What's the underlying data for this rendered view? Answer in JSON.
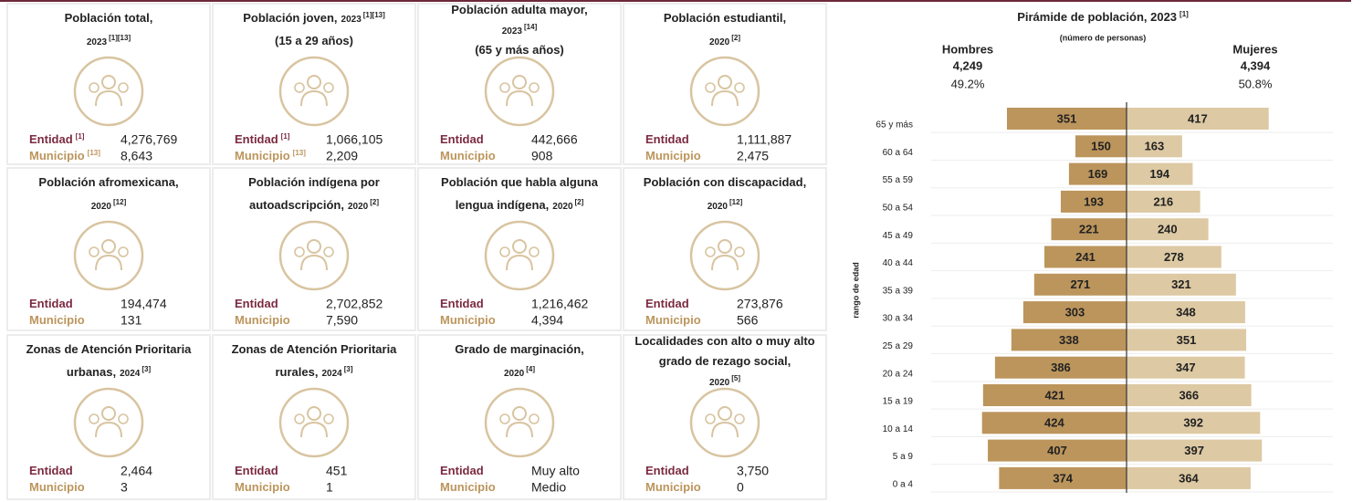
{
  "labels": {
    "entidad": "Entidad",
    "municipio": "Municipio"
  },
  "cards": [
    {
      "title_lines": [
        [
          {
            "text": "Población total,",
            "kind": "main"
          }
        ],
        [
          {
            "text": "2023",
            "kind": "year"
          },
          {
            "text": "[1][13]",
            "kind": "ref"
          }
        ]
      ],
      "entidad_ref": "[1]",
      "entidad_value": "4,276,769",
      "municipio_ref": "[13]",
      "municipio_value": "8,643"
    },
    {
      "title_lines": [
        [
          {
            "text": "Población joven,",
            "kind": "main"
          },
          {
            "text": "2023",
            "kind": "year"
          },
          {
            "text": "[1][13]",
            "kind": "ref"
          }
        ],
        [
          {
            "text": "(15 a 29 años)",
            "kind": "main"
          }
        ]
      ],
      "entidad_ref": "[1]",
      "entidad_value": "1,066,105",
      "municipio_ref": "[13]",
      "municipio_value": "2,209"
    },
    {
      "title_lines": [
        [
          {
            "text": "Población adulta mayor,",
            "kind": "main"
          }
        ],
        [
          {
            "text": "2023",
            "kind": "year"
          },
          {
            "text": "[14]",
            "kind": "ref"
          }
        ],
        [
          {
            "text": "(65 y más años)",
            "kind": "main"
          }
        ]
      ],
      "entidad_value": "442,666",
      "municipio_value": "908"
    },
    {
      "title_lines": [
        [
          {
            "text": "Población estudiantil,",
            "kind": "main"
          }
        ],
        [
          {
            "text": "2020",
            "kind": "year"
          },
          {
            "text": "[2]",
            "kind": "ref"
          }
        ]
      ],
      "entidad_value": "1,111,887",
      "municipio_value": "2,475"
    },
    {
      "title_lines": [
        [
          {
            "text": "Población afromexicana,",
            "kind": "main"
          }
        ],
        [
          {
            "text": "2020",
            "kind": "year"
          },
          {
            "text": "[12]",
            "kind": "ref"
          }
        ]
      ],
      "entidad_value": "194,474",
      "municipio_value": "131"
    },
    {
      "title_lines": [
        [
          {
            "text": "Población indígena por",
            "kind": "main"
          }
        ],
        [
          {
            "text": "autoadscripción,",
            "kind": "main"
          },
          {
            "text": "2020",
            "kind": "year"
          },
          {
            "text": "[2]",
            "kind": "ref"
          }
        ]
      ],
      "entidad_value": "2,702,852",
      "municipio_value": "7,590"
    },
    {
      "title_lines": [
        [
          {
            "text": "Población que habla alguna",
            "kind": "main"
          }
        ],
        [
          {
            "text": "lengua indígena,",
            "kind": "main"
          },
          {
            "text": "2020",
            "kind": "year"
          },
          {
            "text": "[2]",
            "kind": "ref"
          }
        ]
      ],
      "entidad_value": "1,216,462",
      "municipio_value": "4,394"
    },
    {
      "title_lines": [
        [
          {
            "text": "Población con discapacidad,",
            "kind": "main"
          }
        ],
        [
          {
            "text": "2020",
            "kind": "year"
          },
          {
            "text": "[12]",
            "kind": "ref"
          }
        ]
      ],
      "entidad_value": "273,876",
      "municipio_value": "566"
    },
    {
      "title_lines": [
        [
          {
            "text": "Zonas de Atención Prioritaria",
            "kind": "main"
          }
        ],
        [
          {
            "text": "urbanas,",
            "kind": "main"
          },
          {
            "text": "2024",
            "kind": "year"
          },
          {
            "text": "[3]",
            "kind": "ref"
          }
        ]
      ],
      "entidad_value": "2,464",
      "municipio_value": "3"
    },
    {
      "title_lines": [
        [
          {
            "text": "Zonas de Atención Prioritaria",
            "kind": "main"
          }
        ],
        [
          {
            "text": "rurales,",
            "kind": "main"
          },
          {
            "text": "2024",
            "kind": "year"
          },
          {
            "text": "[3]",
            "kind": "ref"
          }
        ]
      ],
      "entidad_value": "451",
      "municipio_value": "1"
    },
    {
      "title_lines": [
        [
          {
            "text": "Grado de marginación,",
            "kind": "main"
          }
        ],
        [
          {
            "text": "2020",
            "kind": "year"
          },
          {
            "text": "[4]",
            "kind": "ref"
          }
        ]
      ],
      "entidad_value": "Muy alto",
      "municipio_value": "Medio"
    },
    {
      "title_lines": [
        [
          {
            "text": "Localidades con alto o muy alto",
            "kind": "main"
          }
        ],
        [
          {
            "text": "grado de rezago social,",
            "kind": "main"
          }
        ],
        [
          {
            "text": "2020",
            "kind": "year"
          },
          {
            "text": "[5]",
            "kind": "ref"
          }
        ]
      ],
      "entidad_value": "3,750",
      "municipio_value": "0"
    }
  ],
  "chart_data": {
    "type": "pyramid",
    "title": "Pirámide de población, 2023",
    "title_ref": "[1]",
    "subtitle": "(número de personas)",
    "y_label": "rango de edad",
    "categories": [
      "65 y más",
      "60 a 64",
      "55 a 59",
      "50 a 54",
      "45 a 49",
      "40 a 44",
      "35 a 39",
      "30 a 34",
      "25 a 29",
      "20 a 24",
      "15 a 19",
      "10 a 14",
      "5 a 9",
      "0 a 4"
    ],
    "series": [
      {
        "name": "Hombres",
        "total": "4,249",
        "share": "49.2%",
        "color": "#bc955c",
        "values": [
          351,
          150,
          169,
          193,
          221,
          241,
          271,
          303,
          338,
          386,
          421,
          424,
          407,
          374
        ]
      },
      {
        "name": "Mujeres",
        "total": "4,394",
        "share": "50.8%",
        "color": "#ddc9a3",
        "values": [
          417,
          163,
          194,
          216,
          240,
          278,
          321,
          348,
          351,
          347,
          366,
          392,
          397,
          364
        ]
      }
    ],
    "xlim": [
      0,
      600
    ]
  }
}
